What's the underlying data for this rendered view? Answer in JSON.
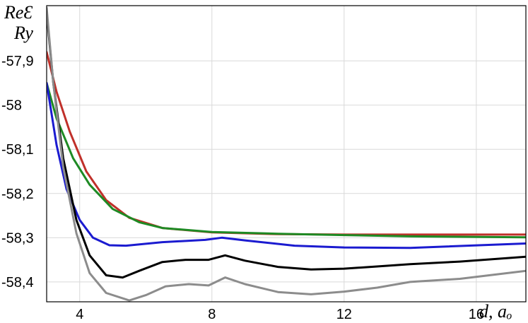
{
  "chart_data": {
    "type": "line",
    "ylabel_lines": [
      "ReƐ",
      "Ry"
    ],
    "xlabel": "d, aₒ",
    "xlim": [
      3,
      17.5
    ],
    "ylim": [
      -58.445,
      -57.775
    ],
    "x_ticks": [
      4,
      8,
      12,
      16
    ],
    "x_tick_labels": [
      "4",
      "8",
      "12",
      "16"
    ],
    "y_ticks": [
      -57.9,
      -58.0,
      -58.1,
      -58.2,
      -58.3,
      -58.4
    ],
    "y_tick_labels": [
      "-57,9",
      "-58",
      "-58,1",
      "-58,2",
      "-58,3",
      "-58,4"
    ],
    "grid": true,
    "series": [
      {
        "color": "#c0302a",
        "points": [
          [
            3.0,
            -57.88
          ],
          [
            3.3,
            -57.97
          ],
          [
            3.7,
            -58.06
          ],
          [
            4.2,
            -58.15
          ],
          [
            4.8,
            -58.215
          ],
          [
            5.5,
            -58.255
          ],
          [
            6.5,
            -58.278
          ],
          [
            8.0,
            -58.288
          ],
          [
            10.0,
            -58.292
          ],
          [
            12.0,
            -58.293
          ],
          [
            14.0,
            -58.293
          ],
          [
            17.5,
            -58.293
          ]
        ]
      },
      {
        "color": "#1e8a24",
        "points": [
          [
            3.0,
            -57.95
          ],
          [
            3.3,
            -58.03
          ],
          [
            3.8,
            -58.12
          ],
          [
            4.3,
            -58.18
          ],
          [
            5.0,
            -58.235
          ],
          [
            5.8,
            -58.265
          ],
          [
            6.5,
            -58.278
          ],
          [
            8.0,
            -58.287
          ],
          [
            10.0,
            -58.291
          ],
          [
            12.0,
            -58.294
          ],
          [
            14.0,
            -58.297
          ],
          [
            17.5,
            -58.299
          ]
        ]
      },
      {
        "color": "#1b1bd0",
        "points": [
          [
            3.0,
            -57.95
          ],
          [
            3.3,
            -58.09
          ],
          [
            3.6,
            -58.19
          ],
          [
            4.0,
            -58.26
          ],
          [
            4.4,
            -58.3
          ],
          [
            4.9,
            -58.317
          ],
          [
            5.4,
            -58.318
          ],
          [
            6.5,
            -58.31
          ],
          [
            7.8,
            -58.305
          ],
          [
            8.3,
            -58.3
          ],
          [
            9.0,
            -58.306
          ],
          [
            10.5,
            -58.318
          ],
          [
            12.0,
            -58.322
          ],
          [
            14.0,
            -58.323
          ],
          [
            17.5,
            -58.313
          ]
        ]
      },
      {
        "color": "#000000",
        "points": [
          [
            3.0,
            -57.79
          ],
          [
            3.2,
            -57.95
          ],
          [
            3.5,
            -58.12
          ],
          [
            3.9,
            -58.26
          ],
          [
            4.3,
            -58.34
          ],
          [
            4.8,
            -58.385
          ],
          [
            5.3,
            -58.39
          ],
          [
            5.8,
            -58.375
          ],
          [
            6.5,
            -58.355
          ],
          [
            7.2,
            -58.35
          ],
          [
            7.9,
            -58.35
          ],
          [
            8.4,
            -58.34
          ],
          [
            9.0,
            -58.352
          ],
          [
            10.0,
            -58.366
          ],
          [
            11.0,
            -58.372
          ],
          [
            12.0,
            -58.37
          ],
          [
            13.0,
            -58.365
          ],
          [
            14.0,
            -58.36
          ],
          [
            15.5,
            -58.354
          ],
          [
            17.5,
            -58.343
          ]
        ]
      },
      {
        "color": "#8c8c8c",
        "points": [
          [
            3.0,
            -57.78
          ],
          [
            3.2,
            -57.95
          ],
          [
            3.5,
            -58.14
          ],
          [
            3.9,
            -58.29
          ],
          [
            4.3,
            -58.38
          ],
          [
            4.8,
            -58.425
          ],
          [
            5.5,
            -58.442
          ],
          [
            6.0,
            -58.43
          ],
          [
            6.6,
            -58.41
          ],
          [
            7.3,
            -58.405
          ],
          [
            7.9,
            -58.408
          ],
          [
            8.4,
            -58.39
          ],
          [
            9.0,
            -58.405
          ],
          [
            10.0,
            -58.423
          ],
          [
            11.0,
            -58.428
          ],
          [
            12.0,
            -58.422
          ],
          [
            13.0,
            -58.413
          ],
          [
            14.0,
            -58.4
          ],
          [
            15.5,
            -58.393
          ],
          [
            17.5,
            -58.375
          ]
        ]
      }
    ]
  }
}
